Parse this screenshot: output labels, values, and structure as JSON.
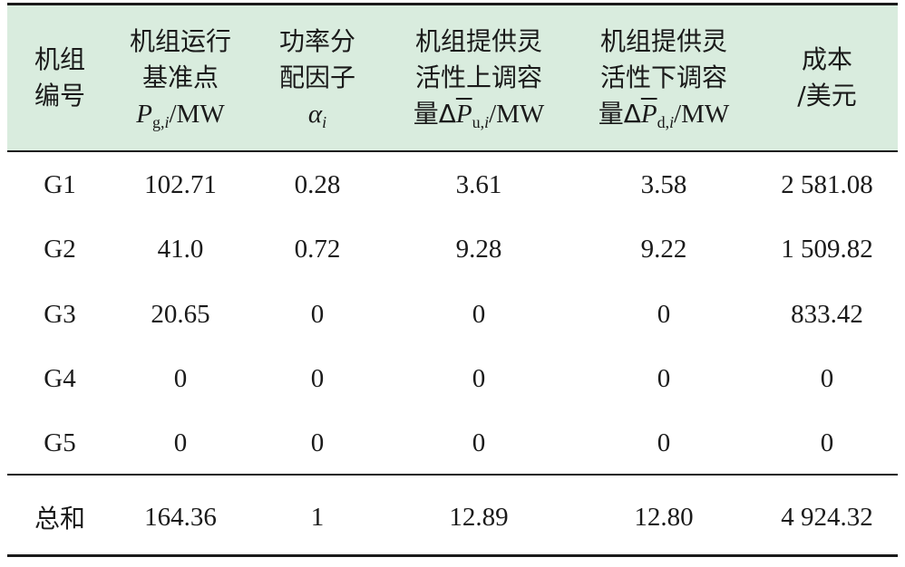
{
  "headers": {
    "unit_id": [
      "机组",
      "编号"
    ],
    "base_point": [
      "机组运行",
      "基准点"
    ],
    "alloc_factor": [
      "功率分",
      "配因子"
    ],
    "up_capacity": [
      "机组提供灵",
      "活性上调容"
    ],
    "down_capacity": [
      "机组提供灵",
      "活性下调容"
    ],
    "cost": [
      "成本",
      "/美元"
    ],
    "formula": {
      "pg_symbol": "P",
      "pg_sub": "g,",
      "pg_sub_i": "i",
      "pg_unit": "/MW",
      "alpha_symbol": "α",
      "alpha_sub": "i",
      "up_prefix": "量Δ",
      "up_symbol": "P",
      "up_sub": "u,",
      "up_sub_i": "i",
      "up_unit": "/MW",
      "down_prefix": "量Δ",
      "down_symbol": "P",
      "down_sub": "d,",
      "down_sub_i": "i",
      "down_unit": "/MW"
    }
  },
  "rows": [
    [
      "G1",
      "102.71",
      "0.28",
      "3.61",
      "3.58",
      "2 581.08"
    ],
    [
      "G2",
      "41.0",
      "0.72",
      "9.28",
      "9.22",
      "1 509.82"
    ],
    [
      "G3",
      "20.65",
      "0",
      "0",
      "0",
      "833.42"
    ],
    [
      "G4",
      "0",
      "0",
      "0",
      "0",
      "0"
    ],
    [
      "G5",
      "0",
      "0",
      "0",
      "0",
      "0"
    ]
  ],
  "total": [
    "总和",
    "164.36",
    "1",
    "12.89",
    "12.80",
    "4 924.32"
  ],
  "colors": {
    "header_bg": "#d9ecde",
    "rule": "#1a1a1a",
    "text": "#1a1a1a"
  }
}
